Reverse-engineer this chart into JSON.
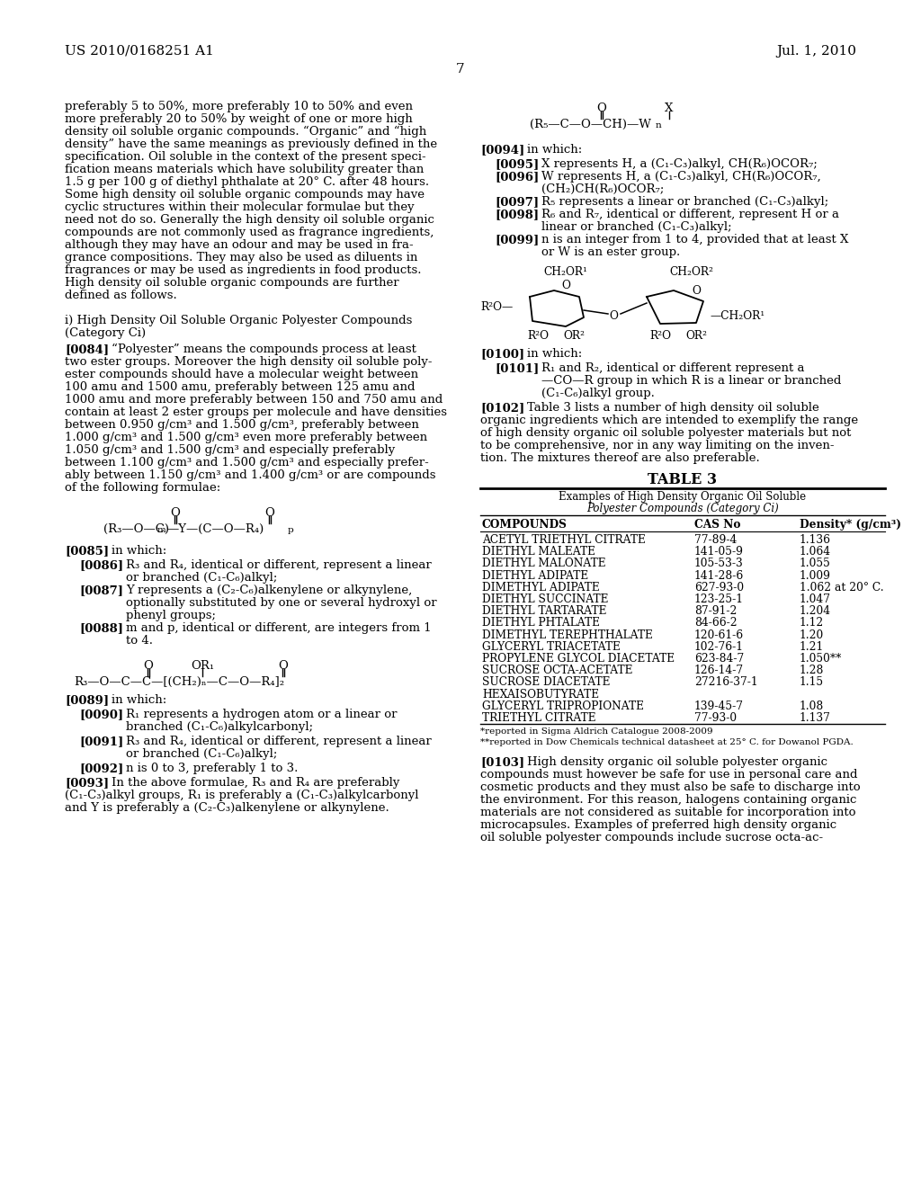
{
  "page_header_left": "US 2010/0168251 A1",
  "page_header_right": "Jul. 1, 2010",
  "page_number": "7",
  "bg": "#ffffff",
  "tc": "#000000",
  "left_col_lines": [
    "preferably 5 to 50%, more preferably 10 to 50% and even",
    "more preferably 20 to 50% by weight of one or more high",
    "density oil soluble organic compounds. “Organic” and “high",
    "density” have the same meanings as previously defined in the",
    "specification. Oil soluble in the context of the present speci-",
    "fication means materials which have solubility greater than",
    "1.5 g per 100 g of diethyl phthalate at 20° C. after 48 hours.",
    "Some high density oil soluble organic compounds may have",
    "cyclic structures within their molecular formulae but they",
    "need not do so. Generally the high density oil soluble organic",
    "compounds are not commonly used as fragrance ingredients,",
    "although they may have an odour and may be used in fra-",
    "grance compositions. They may also be used as diluents in",
    "fragrances or may be used as ingredients in food products.",
    "High density oil soluble organic compounds are further",
    "defined as follows."
  ],
  "section_heading1": "i) High Density Oil Soluble Organic Polyester Compounds",
  "section_heading2": "(Category Ci)",
  "para_0084_lines": [
    "“Polyester” means the compounds process at least",
    "two ester groups. Moreover the high density oil soluble poly-",
    "ester compounds should have a molecular weight between",
    "100 amu and 1500 amu, preferably between 125 amu and",
    "1000 amu and more preferably between 150 and 750 amu and",
    "contain at least 2 ester groups per molecule and have densities",
    "between 0.950 g/cm³ and 1.500 g/cm³, preferably between",
    "1.000 g/cm³ and 1.500 g/cm³ even more preferably between",
    "1.050 g/cm³ and 1.500 g/cm³ and especially preferably",
    "between 1.100 g/cm³ and 1.500 g/cm³ and especially prefer-",
    "ably between 1.150 g/cm³ and 1.400 g/cm³ or are compounds",
    "of the following formulae:"
  ],
  "para_0085_lines": [
    "    in which:"
  ],
  "para_0086_lines": [
    "    R₃ and R₄, identical or different, represent a linear",
    "    or branched (C₁-C₆)alkyl;"
  ],
  "para_0087_lines": [
    "    Y represents a (C₂-C₆)alkenylene or alkynylene,",
    "    optionally substituted by one or several hydroxyl or",
    "    phenyl groups;"
  ],
  "para_0088_lines": [
    "    m and p, identical or different, are integers from 1",
    "    to 4."
  ],
  "para_0089_lines": [
    "    in which:"
  ],
  "para_0090_lines": [
    "    R₁ represents a hydrogen atom or a linear or",
    "    branched (C₁-C₆)alkylcarbonyl;"
  ],
  "para_0091_lines": [
    "    R₃ and R₄, identical or different, represent a linear",
    "    or branched (C₁-C₆)alkyl;"
  ],
  "para_0092_lines": [
    "    n is 0 to 3, preferably 1 to 3."
  ],
  "para_0093_lines": [
    "    In the above formulae, R₃ and R₄ are preferably",
    "(C₁-C₃)alkyl groups, R₁ is preferably a (C₁-C₃)alkylcarbonyl",
    "and Y is preferably a (C₂-C₃)alkenylene or alkynylene."
  ],
  "right_para_0094_lines": [
    "    in which:"
  ],
  "right_para_0095_lines": [
    "    X represents H, a (C₁-C₃)alkyl, CH(R₆)OCOR₇;"
  ],
  "right_para_0096_lines": [
    "    W represents H, a (C₁-C₃)alkyl, CH(R₆)OCOR₇,",
    "    (CH₂)CH(R₆)OCOR₇;"
  ],
  "right_para_0097_lines": [
    "    R₅ represents a linear or branched (C₁-C₃)alkyl;"
  ],
  "right_para_0098_lines": [
    "    R₆ and R₇, identical or different, represent H or a",
    "    linear or branched (C₁-C₃)alkyl;"
  ],
  "right_para_0099_lines": [
    "    n is an integer from 1 to 4, provided that at least X",
    "    or W is an ester group."
  ],
  "right_para_0100_lines": [
    "    in which:"
  ],
  "right_para_0101_lines": [
    "    R₁ and R₂, identical or different represent a",
    "    —CO—R group in which R is a linear or branched",
    "    (C₁-C₆)alkyl group."
  ],
  "right_para_0102_lines": [
    "    Table 3 lists a number of high density oil soluble",
    "organic ingredients which are intended to exemplify the range",
    "of high density organic oil soluble polyester materials but not",
    "to be comprehensive, nor in any way limiting on the inven-",
    "tion. The mixtures thereof are also preferable."
  ],
  "right_para_0103_lines": [
    "    High density organic oil soluble polyester organic",
    "compounds must however be safe for use in personal care and",
    "cosmetic products and they must also be safe to discharge into",
    "the environment. For this reason, halogens containing organic",
    "materials are not considered as suitable for incorporation into",
    "microcapsules. Examples of preferred high density organic",
    "oil soluble polyester compounds include sucrose octa-ac-"
  ],
  "table_title": "TABLE 3",
  "table_subtitle1": "Examples of High Density Organic Oil Soluble",
  "table_subtitle2": "Polyester Compounds (Category Ci)",
  "table_headers": [
    "COMPOUNDS",
    "CAS No",
    "Density* (g/cm³)"
  ],
  "table_rows": [
    [
      "ACETYL TRIETHYL CITRATE",
      "77-89-4",
      "1.136"
    ],
    [
      "DIETHYL MALEATE",
      "141-05-9",
      "1.064"
    ],
    [
      "DIETHYL MALONATE",
      "105-53-3",
      "1.055"
    ],
    [
      "DIETHYL ADIPATE",
      "141-28-6",
      "1.009"
    ],
    [
      "DIMETHYL ADIPATE",
      "627-93-0",
      "1.062 at 20° C."
    ],
    [
      "DIETHYL SUCCINATE",
      "123-25-1",
      "1.047"
    ],
    [
      "DIETHYL TARTARATE",
      "87-91-2",
      "1.204"
    ],
    [
      "DIETHYL PHTALATE",
      "84-66-2",
      "1.12"
    ],
    [
      "DIMETHYL TEREPHTHALATE",
      "120-61-6",
      "1.20"
    ],
    [
      "GLYCERYL TRIACETATE",
      "102-76-1",
      "1.21"
    ],
    [
      "PROPYLENE GLYCOL DIACETATE",
      "623-84-7",
      "1.050**"
    ],
    [
      "SUCROSE OCTA-ACETATE",
      "126-14-7",
      "1.28"
    ],
    [
      "SUCROSE DIACETATE",
      "27216-37-1",
      "1.15"
    ],
    [
      "HEXAISOBUTYRATE",
      "",
      ""
    ],
    [
      "GLYCERYL TRIPROPIONATE",
      "139-45-7",
      "1.08"
    ],
    [
      "TRIETHYL CITRATE",
      "77-93-0",
      "1.137"
    ]
  ],
  "table_footnote1": "*reported in Sigma Aldrich Catalogue 2008-2009",
  "table_footnote2": "**reported in Dow Chemicals technical datasheet at 25° C. for Dowanol PGDA."
}
